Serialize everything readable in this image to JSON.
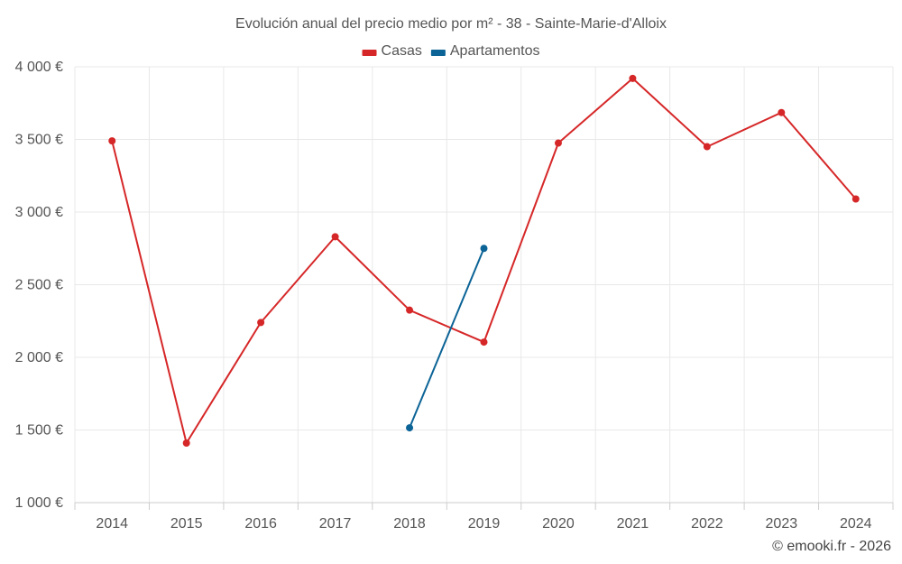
{
  "chart_data": {
    "type": "line",
    "title": "Evolución anual del precio medio por m² - 38 - Sainte-Marie-d'Alloix",
    "categories": [
      "2014",
      "2015",
      "2016",
      "2017",
      "2018",
      "2019",
      "2020",
      "2021",
      "2022",
      "2023",
      "2024"
    ],
    "series": [
      {
        "name": "Casas",
        "color": "#d62728",
        "values": [
          3490,
          1410,
          2240,
          2830,
          2325,
          2105,
          3475,
          3920,
          3450,
          3685,
          3090
        ]
      },
      {
        "name": "Apartamentos",
        "color": "#0b6396",
        "values": [
          null,
          null,
          null,
          null,
          1515,
          2750,
          null,
          null,
          null,
          null,
          null
        ]
      }
    ],
    "ylim": [
      1000,
      4000
    ],
    "yticks": [
      1000,
      1500,
      2000,
      2500,
      3000,
      3500,
      4000
    ],
    "ytick_labels": [
      "1 000 €",
      "1 500 €",
      "2 000 €",
      "2 500 €",
      "3 000 €",
      "3 500 €",
      "4 000 €"
    ],
    "xlabel": "",
    "ylabel": "",
    "grid": true,
    "legend_position": "top-center"
  },
  "credit": "© emooki.fr - 2026"
}
